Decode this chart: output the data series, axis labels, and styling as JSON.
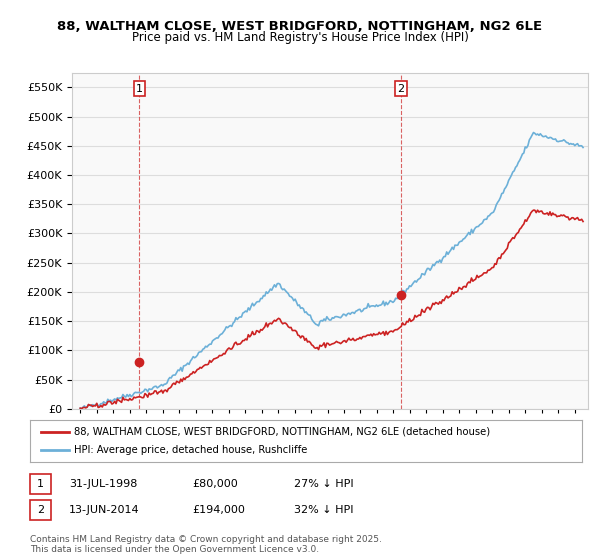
{
  "title_line1": "88, WALTHAM CLOSE, WEST BRIDGFORD, NOTTINGHAM, NG2 6LE",
  "title_line2": "Price paid vs. HM Land Registry's House Price Index (HPI)",
  "hpi_color": "#6cb0d8",
  "price_color": "#cc2222",
  "vline_color": "#cc2222",
  "transaction1_date_num": 1998.58,
  "transaction1_price": 80000,
  "transaction1_label": "1",
  "transaction2_date_num": 2014.45,
  "transaction2_price": 194000,
  "transaction2_label": "2",
  "legend_line1": "88, WALTHAM CLOSE, WEST BRIDGFORD, NOTTINGHAM, NG2 6LE (detached house)",
  "legend_line2": "HPI: Average price, detached house, Rushcliffe",
  "annotation1": "31-JUL-1998          £80,000          27% ↓ HPI",
  "annotation2": "13-JUN-2014          £194,000          32% ↓ HPI",
  "footer": "Contains HM Land Registry data © Crown copyright and database right 2025.\nThis data is licensed under the Open Government Licence v3.0.",
  "ylim_max": 575000,
  "yticks": [
    0,
    50000,
    100000,
    150000,
    200000,
    250000,
    300000,
    350000,
    400000,
    450000,
    500000,
    550000
  ],
  "background_color": "#f9f9f9",
  "grid_color": "#dddddd"
}
